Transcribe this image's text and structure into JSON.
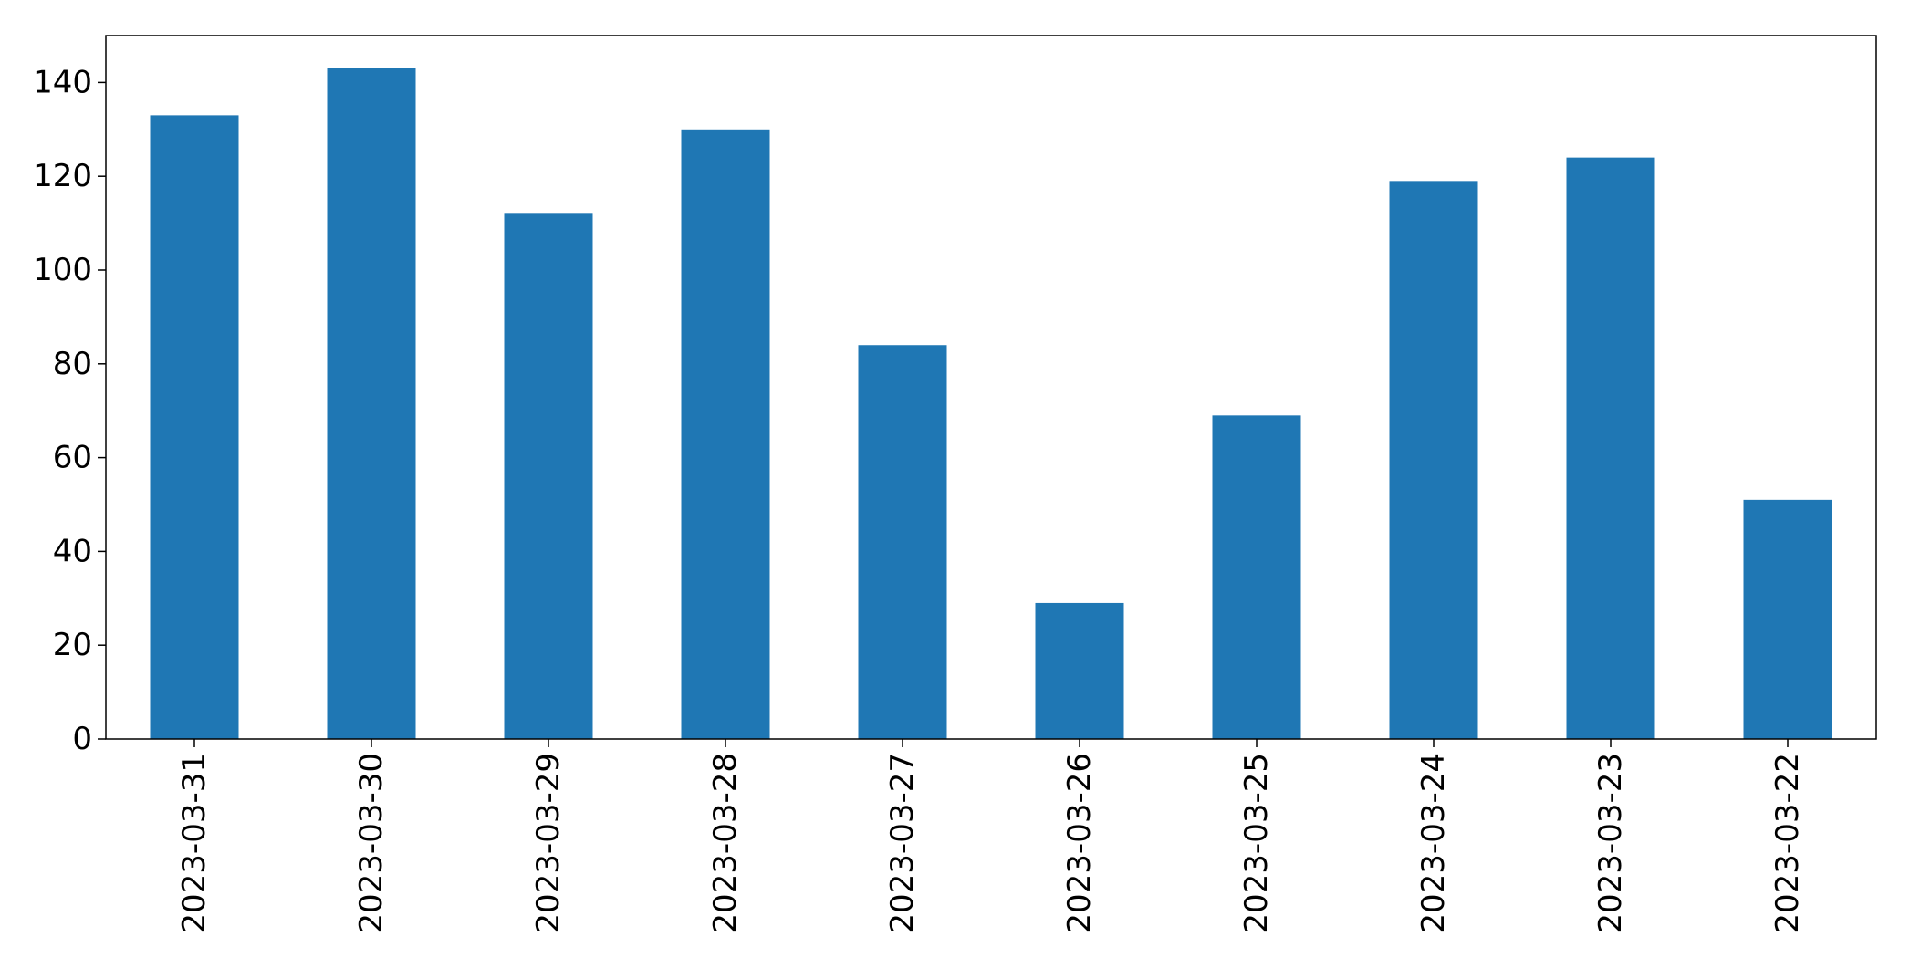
{
  "chart_data": {
    "type": "bar",
    "title": "",
    "xlabel": "",
    "ylabel": "",
    "categories": [
      "2023-03-31",
      "2023-03-30",
      "2023-03-29",
      "2023-03-28",
      "2023-03-27",
      "2023-03-26",
      "2023-03-25",
      "2023-03-24",
      "2023-03-23",
      "2023-03-22"
    ],
    "values": [
      133,
      143,
      112,
      130,
      84,
      29,
      69,
      119,
      124,
      51
    ],
    "ylim": [
      0,
      150
    ],
    "yticks": [
      0,
      20,
      40,
      60,
      80,
      100,
      120,
      140
    ],
    "ytick_labels": [
      "0",
      "20",
      "40",
      "60",
      "80",
      "100",
      "120",
      "140"
    ],
    "bar_color": "#1f77b4",
    "grid": false,
    "legend": "none"
  }
}
